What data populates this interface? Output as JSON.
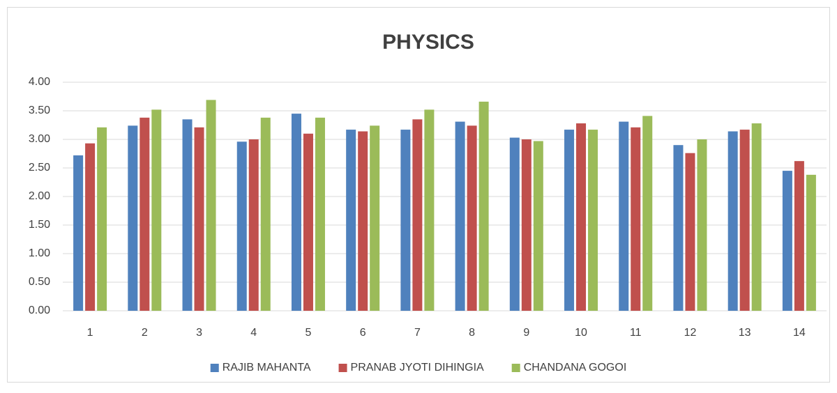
{
  "chart_data": {
    "type": "bar",
    "title": "PHYSICS",
    "categories": [
      "1",
      "2",
      "3",
      "4",
      "5",
      "6",
      "7",
      "8",
      "9",
      "10",
      "11",
      "12",
      "13",
      "14"
    ],
    "series": [
      {
        "name": "RAJIB MAHANTA",
        "color": "#4f81bd",
        "values": [
          2.72,
          3.24,
          3.35,
          2.96,
          3.45,
          3.17,
          3.17,
          3.31,
          3.03,
          3.17,
          3.31,
          2.9,
          3.14,
          2.45
        ]
      },
      {
        "name": "PRANAB JYOTI DIHINGIA",
        "color": "#c0504d",
        "values": [
          2.93,
          3.38,
          3.21,
          3.0,
          3.1,
          3.14,
          3.35,
          3.24,
          3.0,
          3.28,
          3.21,
          2.76,
          3.17,
          2.62
        ]
      },
      {
        "name": "CHANDANA GOGOI",
        "color": "#9bbb59",
        "values": [
          3.21,
          3.52,
          3.69,
          3.38,
          3.38,
          3.24,
          3.52,
          3.66,
          2.97,
          3.17,
          3.41,
          3.0,
          3.28,
          2.38
        ]
      }
    ],
    "ylim": [
      0,
      4
    ],
    "yticks": [
      {
        "value": 0,
        "label": "0.00"
      },
      {
        "value": 0.5,
        "label": "0.50"
      },
      {
        "value": 1,
        "label": "1.00"
      },
      {
        "value": 1.5,
        "label": "1.50"
      },
      {
        "value": 2,
        "label": "2.00"
      },
      {
        "value": 2.5,
        "label": "2.50"
      },
      {
        "value": 3,
        "label": "3.00"
      },
      {
        "value": 3.5,
        "label": "3.50"
      },
      {
        "value": 4,
        "label": "4.00"
      }
    ],
    "grid": true,
    "legend": "bottom"
  }
}
